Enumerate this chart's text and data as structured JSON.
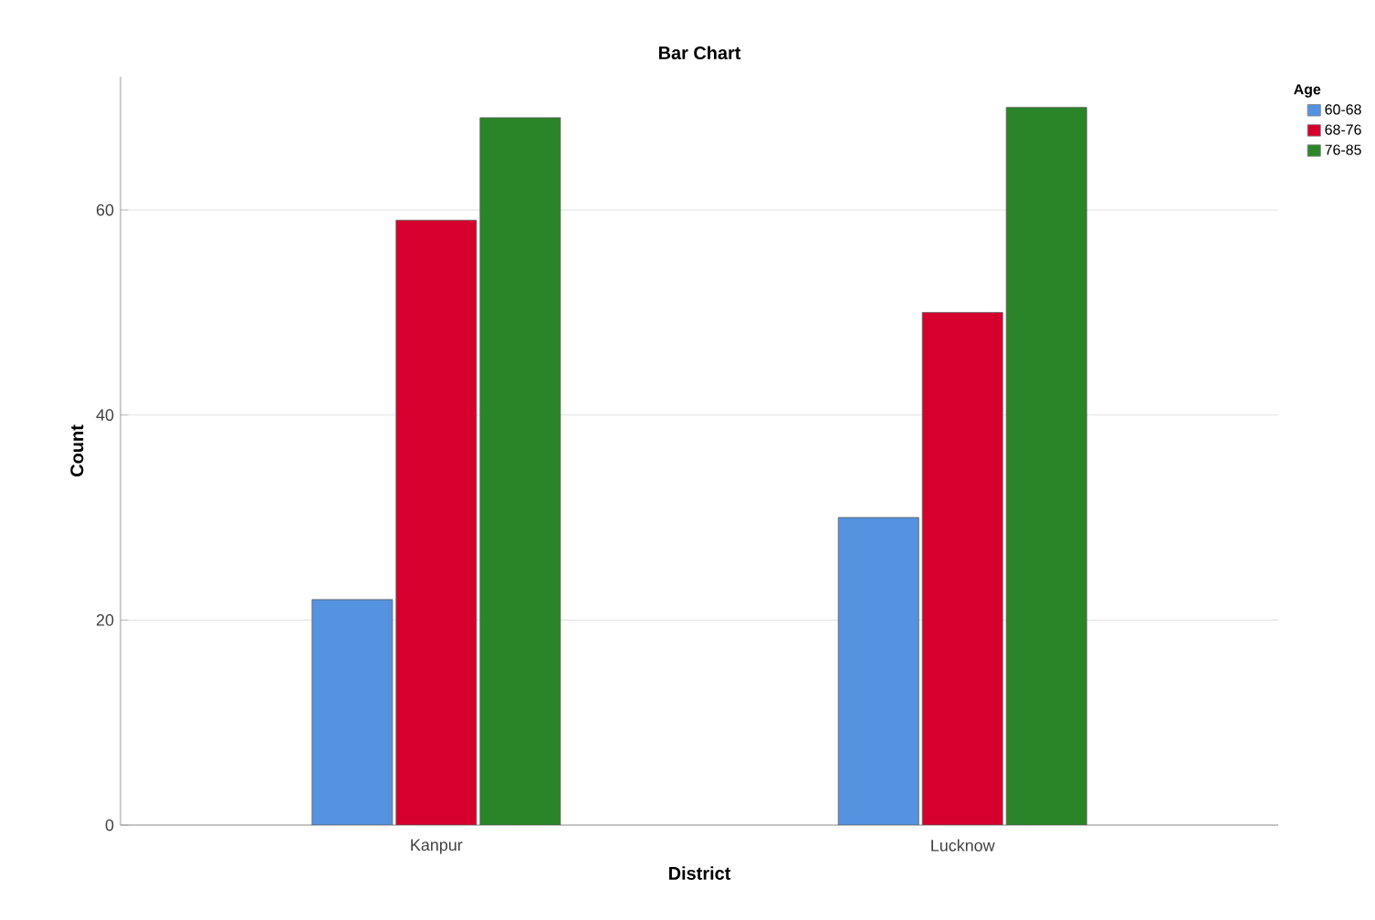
{
  "chart_data": {
    "type": "bar",
    "title": "Bar Chart",
    "xlabel": "District",
    "ylabel": "Count",
    "legend_title": "Age",
    "categories": [
      "Kanpur",
      "Lucknow"
    ],
    "series": [
      {
        "name": "60-68",
        "color": "#5592e0",
        "values": [
          22,
          30
        ]
      },
      {
        "name": "68-76",
        "color": "#d6002c",
        "values": [
          59,
          50
        ]
      },
      {
        "name": "76-85",
        "color": "#2a8528",
        "values": [
          69,
          70
        ]
      }
    ],
    "ylim": [
      0,
      73
    ],
    "yticks": [
      0,
      20,
      40,
      60
    ],
    "grid": "y",
    "legend": "top right"
  }
}
